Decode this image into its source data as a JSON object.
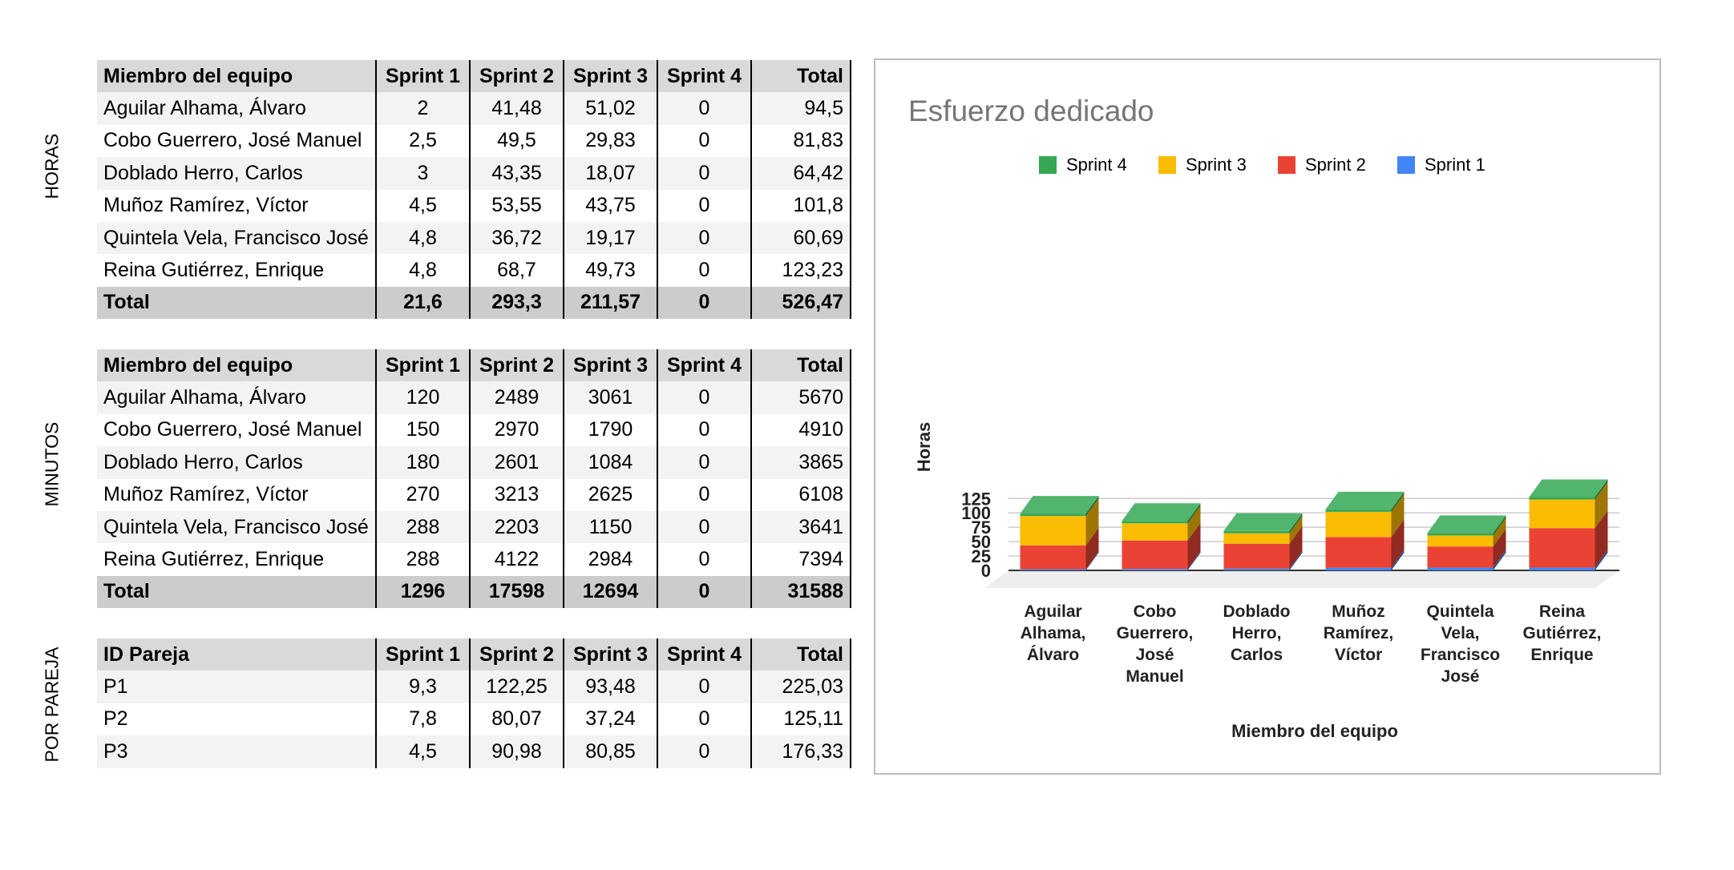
{
  "sections": {
    "horas": "HORAS",
    "minutos": "MINUTOS",
    "pareja": "POR PAREJA"
  },
  "tables": {
    "horas": {
      "headers": [
        "Miembro del equipo",
        "Sprint 1",
        "Sprint 2",
        "Sprint 3",
        "Sprint 4",
        "Total"
      ],
      "rows": [
        [
          "Aguilar Alhama, Álvaro",
          "2",
          "41,48",
          "51,02",
          "0",
          "94,5"
        ],
        [
          "Cobo Guerrero, José Manuel",
          "2,5",
          "49,5",
          "29,83",
          "0",
          "81,83"
        ],
        [
          "Doblado Herro, Carlos",
          "3",
          "43,35",
          "18,07",
          "0",
          "64,42"
        ],
        [
          "Muñoz Ramírez, Víctor",
          "4,5",
          "53,55",
          "43,75",
          "0",
          "101,8"
        ],
        [
          "Quintela Vela, Francisco José",
          "4,8",
          "36,72",
          "19,17",
          "0",
          "60,69"
        ],
        [
          "Reina Gutiérrez, Enrique",
          "4,8",
          "68,7",
          "49,73",
          "0",
          "123,23"
        ]
      ],
      "total": [
        "Total",
        "21,6",
        "293,3",
        "211,57",
        "0",
        "526,47"
      ]
    },
    "minutos": {
      "headers": [
        "Miembro del equipo",
        "Sprint 1",
        "Sprint 2",
        "Sprint 3",
        "Sprint 4",
        "Total"
      ],
      "rows": [
        [
          "Aguilar Alhama, Álvaro",
          "120",
          "2489",
          "3061",
          "0",
          "5670"
        ],
        [
          "Cobo Guerrero, José Manuel",
          "150",
          "2970",
          "1790",
          "0",
          "4910"
        ],
        [
          "Doblado Herro, Carlos",
          "180",
          "2601",
          "1084",
          "0",
          "3865"
        ],
        [
          "Muñoz Ramírez, Víctor",
          "270",
          "3213",
          "2625",
          "0",
          "6108"
        ],
        [
          "Quintela Vela, Francisco José",
          "288",
          "2203",
          "1150",
          "0",
          "3641"
        ],
        [
          "Reina Gutiérrez, Enrique",
          "288",
          "4122",
          "2984",
          "0",
          "7394"
        ]
      ],
      "total": [
        "Total",
        "1296",
        "17598",
        "12694",
        "0",
        "31588"
      ]
    },
    "pareja": {
      "headers": [
        "ID Pareja",
        "Sprint 1",
        "Sprint 2",
        "Sprint 3",
        "Sprint 4",
        "Total"
      ],
      "rows": [
        [
          "P1",
          "9,3",
          "122,25",
          "93,48",
          "0",
          "225,03"
        ],
        [
          "P2",
          "7,8",
          "80,07",
          "37,24",
          "0",
          "125,11"
        ],
        [
          "P3",
          "4,5",
          "90,98",
          "80,85",
          "0",
          "176,33"
        ]
      ]
    }
  },
  "chart_data": {
    "type": "bar",
    "stacked": true,
    "three_d": true,
    "title": "Esfuerzo dedicado",
    "xlabel": "Miembro del equipo",
    "ylabel": "Horas",
    "ylim": [
      0,
      125
    ],
    "yticks": [
      0,
      25,
      50,
      75,
      100,
      125
    ],
    "grid": true,
    "legend_position": "top",
    "categories": [
      [
        "Aguilar",
        "Alhama,",
        "Álvaro"
      ],
      [
        "Cobo",
        "Guerrero,",
        "José",
        "Manuel"
      ],
      [
        "Doblado",
        "Herro,",
        "Carlos"
      ],
      [
        "Muñoz",
        "Ramírez,",
        "Víctor"
      ],
      [
        "Quintela",
        "Vela,",
        "Francisco",
        "José"
      ],
      [
        "Reina",
        "Gutiérrez,",
        "Enrique"
      ]
    ],
    "legend_order": [
      "Sprint 4",
      "Sprint 3",
      "Sprint 2",
      "Sprint 1"
    ],
    "series": [
      {
        "name": "Sprint 1",
        "color": "#4285f4",
        "values": [
          2,
          2.5,
          3,
          4.5,
          4.8,
          4.8
        ]
      },
      {
        "name": "Sprint 2",
        "color": "#ea4335",
        "values": [
          41.48,
          49.5,
          43.35,
          53.55,
          36.72,
          68.7
        ]
      },
      {
        "name": "Sprint 3",
        "color": "#fbbc04",
        "values": [
          51.02,
          29.83,
          18.07,
          43.75,
          19.17,
          49.73
        ]
      },
      {
        "name": "Sprint 4",
        "color": "#34a853",
        "values": [
          0,
          0,
          0,
          0,
          0,
          0
        ]
      }
    ]
  }
}
